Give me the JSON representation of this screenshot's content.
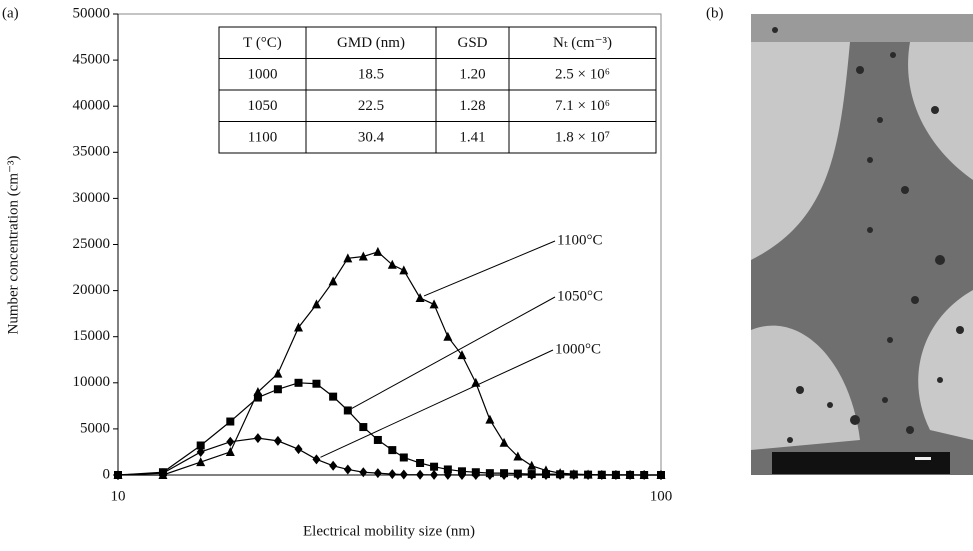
{
  "chart_data": {
    "type": "line",
    "panel_labels": [
      "(a)",
      "(b)"
    ],
    "xlabel": "Electrical mobility size (nm)",
    "ylabel": "Number concentration (cm⁻³)",
    "xscale": "log",
    "xlim": [
      10,
      100
    ],
    "xticks": [
      10,
      100
    ],
    "ylim": [
      0,
      50000
    ],
    "yticks": [
      0,
      5000,
      10000,
      15000,
      20000,
      25000,
      30000,
      35000,
      40000,
      45000,
      50000
    ],
    "x": [
      10,
      12.1,
      14.2,
      16.1,
      18.1,
      19.7,
      21.5,
      23.2,
      24.9,
      26.5,
      28.3,
      30.1,
      32.0,
      33.6,
      36.0,
      38.2,
      40.5,
      43.0,
      45.6,
      48.4,
      51.4,
      54.5,
      57.8,
      61.4,
      65.2,
      69.1,
      73.4,
      77.8,
      82.6,
      87.7,
      93.1,
      100
    ],
    "series": [
      {
        "name": "1100°C",
        "color": "#000000",
        "marker": "triangle",
        "values": [
          0,
          0,
          1400,
          2500,
          9000,
          11000,
          16000,
          18500,
          21000,
          23500,
          23700,
          24200,
          22800,
          22200,
          19200,
          18500,
          15000,
          13000,
          10000,
          6000,
          3500,
          2000,
          1000,
          500,
          200,
          100,
          50,
          0,
          0,
          0,
          0,
          0
        ]
      },
      {
        "name": "1050°C",
        "color": "#000000",
        "marker": "square",
        "values": [
          0,
          300,
          3200,
          5800,
          8400,
          9300,
          10000,
          9900,
          8500,
          7000,
          5200,
          3800,
          2700,
          1900,
          1300,
          900,
          600,
          400,
          300,
          200,
          200,
          150,
          100,
          100,
          80,
          60,
          40,
          30,
          20,
          10,
          0,
          0
        ]
      },
      {
        "name": "1000°C",
        "color": "#000000",
        "marker": "diamond",
        "values": [
          0,
          200,
          2500,
          3600,
          4000,
          3700,
          2800,
          1700,
          1000,
          600,
          300,
          200,
          100,
          50,
          30,
          20,
          10,
          0,
          0,
          0,
          0,
          0,
          0,
          0,
          0,
          0,
          0,
          0,
          0,
          0,
          0,
          0
        ]
      }
    ],
    "table": {
      "columns": [
        "T (°C)",
        "GMD (nm)",
        "GSD",
        "Nₜ (cm⁻³)"
      ],
      "rows": [
        [
          "1000",
          "18.5",
          "1.20",
          "2.5 × 10⁶"
        ],
        [
          "1050",
          "22.5",
          "1.28",
          "7.1 × 10⁶"
        ],
        [
          "1100",
          "30.4",
          "1.41",
          "1.8 × 10⁷"
        ]
      ]
    }
  }
}
